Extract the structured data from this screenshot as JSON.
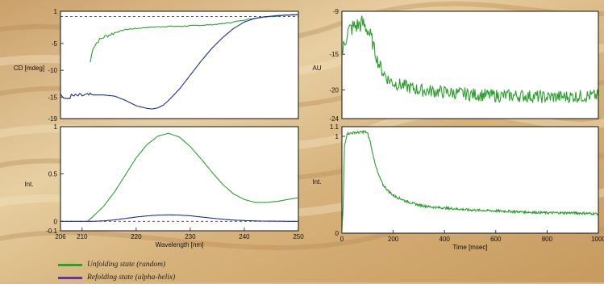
{
  "colors": {
    "green": "#2ca02c",
    "blue": "#1c2e9a",
    "legend_purple": "#5b3aa6",
    "frame": "#111111",
    "panel": "#ffffff"
  },
  "legend": [
    {
      "label": "Unfolding state (random)",
      "color": "#2ca02c"
    },
    {
      "label": "Refolding state (alpha-helix)",
      "color": "#5b3aa6"
    }
  ],
  "chart_data": [
    {
      "id": "cd",
      "type": "line",
      "ylabel": "CD [mdeg]",
      "xlim": [
        206,
        250
      ],
      "ylim": [
        -19,
        1
      ],
      "yticks": [
        1,
        -5,
        -10,
        -15,
        -19
      ],
      "xticks": [],
      "reference_line": 0,
      "series": [
        {
          "color": "#2ca02c",
          "x": [
            211.5,
            212,
            213,
            214,
            215,
            216,
            217,
            218,
            220,
            222,
            224,
            226,
            228,
            230,
            232,
            234,
            236,
            238,
            240,
            242,
            244,
            246,
            248,
            250
          ],
          "y": [
            -8.5,
            -5.8,
            -4.5,
            -3.8,
            -3.4,
            -3.0,
            -2.7,
            -2.4,
            -2.2,
            -2.0,
            -1.9,
            -1.8,
            -1.8,
            -1.7,
            -1.6,
            -1.5,
            -1.3,
            -1.0,
            -0.6,
            -0.3,
            0.0,
            0.1,
            0.3,
            0.4
          ]
        },
        {
          "color": "#1c2e9a",
          "x": [
            206,
            207,
            208,
            210,
            212,
            214,
            216,
            218,
            220,
            222,
            223,
            224,
            225,
            226,
            228,
            230,
            232,
            234,
            236,
            238,
            240,
            242,
            244,
            246,
            248,
            250
          ],
          "y": [
            -14.5,
            -15.5,
            -14.8,
            -14.7,
            -14.6,
            -14.6,
            -14.8,
            -15.6,
            -16.6,
            -17.1,
            -17.2,
            -17.0,
            -16.5,
            -15.6,
            -13.5,
            -10.9,
            -8.3,
            -5.9,
            -3.9,
            -2.2,
            -1.0,
            -0.3,
            0.0,
            0.2,
            0.3,
            0.4
          ]
        }
      ]
    },
    {
      "id": "int-wavelength",
      "type": "line",
      "ylabel": "Int.",
      "xlabel": "Wavelength [nm]",
      "xlim": [
        206,
        250
      ],
      "ylim": [
        -0.1,
        1
      ],
      "xticks": [
        206,
        210,
        220,
        230,
        240,
        250
      ],
      "yticks": [
        1,
        0.5,
        0,
        -0.1
      ],
      "ytick_labels": [
        "1",
        "0.5",
        "0",
        "-0.1"
      ],
      "reference_line": 0,
      "series": [
        {
          "color": "#2ca02c",
          "x": [
            211,
            212,
            214,
            216,
            218,
            220,
            222,
            224,
            226,
            228,
            230,
            232,
            234,
            236,
            238,
            240,
            242,
            244,
            246,
            248,
            250
          ],
          "y": [
            0.0,
            0.05,
            0.16,
            0.31,
            0.49,
            0.67,
            0.81,
            0.9,
            0.93,
            0.89,
            0.79,
            0.66,
            0.52,
            0.39,
            0.29,
            0.23,
            0.2,
            0.2,
            0.21,
            0.23,
            0.25
          ]
        },
        {
          "color": "#1c2e9a",
          "x": [
            206,
            210,
            212,
            214,
            216,
            218,
            220,
            222,
            224,
            226,
            228,
            230,
            232,
            234,
            236,
            238,
            240,
            242,
            244,
            246,
            248,
            250
          ],
          "y": [
            0.0,
            0.0,
            0.0,
            0.005,
            0.015,
            0.03,
            0.045,
            0.057,
            0.065,
            0.068,
            0.066,
            0.058,
            0.046,
            0.033,
            0.022,
            0.013,
            0.008,
            0.004,
            0.002,
            0.001,
            0.0,
            0.0
          ]
        }
      ]
    },
    {
      "id": "au-time",
      "type": "line",
      "ylabel": "AU",
      "xlim": [
        0,
        1000
      ],
      "ylim": [
        -24,
        -9
      ],
      "yticks": [
        -9,
        -15,
        -20,
        -24
      ],
      "xticks": [],
      "series": [
        {
          "color": "#2ca02c",
          "x": [
            0,
            20,
            40,
            60,
            80,
            100,
            120,
            140,
            160,
            180,
            200,
            250,
            300,
            400,
            500,
            600,
            700,
            800,
            900,
            1000
          ],
          "y": [
            -15.0,
            -12.0,
            -11.3,
            -11.0,
            -10.7,
            -11.5,
            -13.5,
            -16.0,
            -17.5,
            -18.5,
            -19.0,
            -19.5,
            -20.0,
            -20.3,
            -20.6,
            -20.8,
            -20.8,
            -21.0,
            -20.9,
            -20.8
          ]
        }
      ]
    },
    {
      "id": "int-time",
      "type": "line",
      "ylabel": "Int.",
      "xlabel": "Time [msec]",
      "xlim": [
        0,
        1000
      ],
      "ylim": [
        0,
        1.1
      ],
      "xticks": [
        0,
        200,
        400,
        600,
        800,
        1000
      ],
      "yticks": [
        1.1,
        1,
        0
      ],
      "ytick_labels": [
        "1.1",
        "1",
        "0"
      ],
      "series": [
        {
          "color": "#2ca02c",
          "x": [
            0,
            5,
            10,
            20,
            30,
            50,
            70,
            90,
            100,
            110,
            120,
            140,
            160,
            180,
            200,
            250,
            300,
            350,
            400,
            500,
            600,
            700,
            800,
            900,
            1000
          ],
          "y": [
            0.0,
            0.3,
            0.9,
            1.03,
            1.03,
            1.04,
            1.04,
            1.05,
            1.03,
            0.95,
            0.82,
            0.62,
            0.5,
            0.44,
            0.39,
            0.33,
            0.29,
            0.27,
            0.26,
            0.24,
            0.23,
            0.22,
            0.21,
            0.21,
            0.2
          ]
        }
      ]
    }
  ]
}
